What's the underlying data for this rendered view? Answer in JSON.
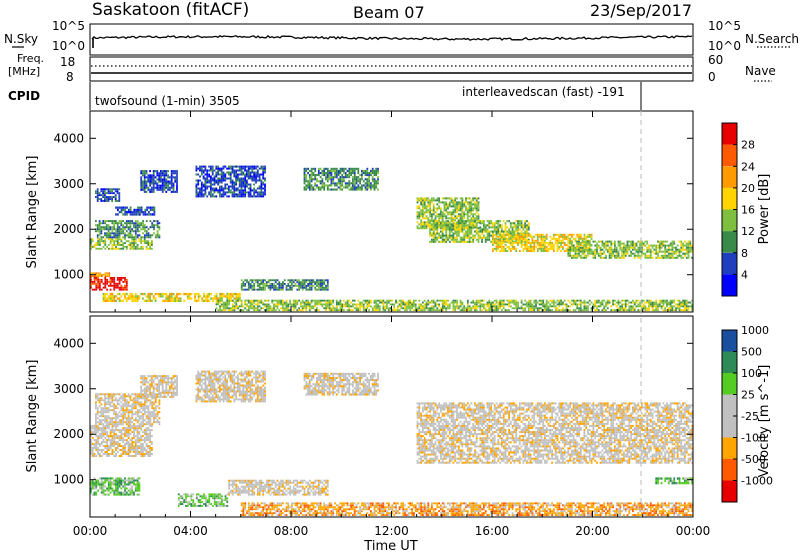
{
  "header": {
    "station": "Saskatoon (fitACF)",
    "beam": "Beam 07",
    "date": "23/Sep/2017"
  },
  "nsky_panel": {
    "left_label": "N.Sky",
    "left_ticks": [
      "10^5",
      "10^0"
    ],
    "right_label": "N.Search",
    "right_ticks": [
      "10^5",
      "10^0"
    ]
  },
  "freq_panel": {
    "left_label_1": "Freq.",
    "left_label_2": "[MHz]",
    "left_ticks": [
      "18",
      "8"
    ],
    "right_label": "Nave",
    "right_ticks": [
      "60",
      "0"
    ]
  },
  "cpid_panel": {
    "label": "CPID",
    "program_1": "twofsound (1-min) 3505",
    "program_2": "interleavedscan (fast) -191"
  },
  "colors": {
    "power_scale": [
      "#0000ff",
      "#1f3fbf",
      "#3a8a4a",
      "#7fbf3f",
      "#ffd400",
      "#ff9a00",
      "#ff5a00",
      "#e60000"
    ],
    "velocity_scale": [
      "#e60000",
      "#ff5a00",
      "#ffa500",
      "#c0c0c0",
      "#c0c0c0",
      "#55cc22",
      "#2e8b57",
      "#1a4fa0"
    ],
    "ground_scatter": "#c0c0c0"
  },
  "chart_data": [
    {
      "type": "heatmap",
      "panel": "power",
      "xlabel": "",
      "ylabel": "Slant Range [km]",
      "x_range_hours": [
        0,
        24
      ],
      "ylim": [
        180,
        4600
      ],
      "y_ticks": [
        1000,
        2000,
        3000,
        4000
      ],
      "colorbar_label": "Power [dB]",
      "colorbar_ticks": [
        "4",
        "8",
        "12",
        "16",
        "20",
        "24",
        "28"
      ],
      "regions": [
        {
          "t0": 0.0,
          "t1": 1.5,
          "r0": 650,
          "r1": 950,
          "level": 7
        },
        {
          "t0": 0.0,
          "t1": 0.8,
          "r0": 950,
          "r1": 1050,
          "level": 5
        },
        {
          "t0": 0.0,
          "t1": 2.5,
          "r0": 1550,
          "r1": 1800,
          "level": 3
        },
        {
          "t0": 0.2,
          "t1": 2.8,
          "r0": 1800,
          "r1": 2200,
          "level": 2
        },
        {
          "t0": 1.0,
          "t1": 2.6,
          "r0": 2300,
          "r1": 2500,
          "level": 1
        },
        {
          "t0": 0.2,
          "t1": 1.2,
          "r0": 2600,
          "r1": 2900,
          "level": 1
        },
        {
          "t0": 0.5,
          "t1": 6.0,
          "r0": 400,
          "r1": 600,
          "level": 4
        },
        {
          "t0": 2.0,
          "t1": 3.5,
          "r0": 2800,
          "r1": 3300,
          "level": 1
        },
        {
          "t0": 4.2,
          "t1": 7.0,
          "r0": 2700,
          "r1": 3400,
          "level": 1
        },
        {
          "t0": 6.0,
          "t1": 9.5,
          "r0": 650,
          "r1": 900,
          "level": 2
        },
        {
          "t0": 8.5,
          "t1": 11.5,
          "r0": 2850,
          "r1": 3350,
          "level": 2
        },
        {
          "t0": 13.0,
          "t1": 15.5,
          "r0": 2000,
          "r1": 2700,
          "level": 3
        },
        {
          "t0": 13.5,
          "t1": 17.5,
          "r0": 1700,
          "r1": 2200,
          "level": 3
        },
        {
          "t0": 16.0,
          "t1": 20.0,
          "r0": 1500,
          "r1": 1900,
          "level": 4
        },
        {
          "t0": 19.0,
          "t1": 24.0,
          "r0": 1350,
          "r1": 1750,
          "level": 3
        },
        {
          "t0": 5.0,
          "t1": 24.0,
          "r0": 200,
          "r1": 450,
          "level": 3
        }
      ]
    },
    {
      "type": "heatmap",
      "panel": "velocity",
      "xlabel": "Time UT",
      "ylabel": "Slant Range [km]",
      "x_range_hours": [
        0,
        24
      ],
      "x_ticks": [
        "00:00",
        "04:00",
        "08:00",
        "12:00",
        "16:00",
        "20:00",
        "00:00"
      ],
      "ylim": [
        180,
        4600
      ],
      "y_ticks": [
        1000,
        2000,
        3000,
        4000
      ],
      "colorbar_label": "Velocity [m s^-1]",
      "colorbar_ticks": [
        "-1000",
        "-500",
        "-100",
        "-25",
        "25",
        "100",
        "500",
        "1000"
      ],
      "regions": [
        {
          "t0": 0.0,
          "t1": 2.5,
          "r0": 1500,
          "r1": 2200,
          "level": 3
        },
        {
          "t0": 0.2,
          "t1": 2.8,
          "r0": 2200,
          "r1": 2900,
          "level": 3
        },
        {
          "t0": 2.0,
          "t1": 3.5,
          "r0": 2800,
          "r1": 3300,
          "level": 3
        },
        {
          "t0": 4.2,
          "t1": 7.0,
          "r0": 2700,
          "r1": 3400,
          "level": 3
        },
        {
          "t0": 8.5,
          "t1": 11.5,
          "r0": 2850,
          "r1": 3350,
          "level": 3
        },
        {
          "t0": 0.0,
          "t1": 2.0,
          "r0": 650,
          "r1": 1050,
          "level": 5
        },
        {
          "t0": 3.5,
          "t1": 5.5,
          "r0": 400,
          "r1": 700,
          "level": 5
        },
        {
          "t0": 5.5,
          "t1": 9.5,
          "r0": 650,
          "r1": 1000,
          "level": 3
        },
        {
          "t0": 13.0,
          "t1": 24.0,
          "r0": 1350,
          "r1": 2700,
          "level": 3
        },
        {
          "t0": 6.0,
          "t1": 24.0,
          "r0": 200,
          "r1": 500,
          "level": 2
        },
        {
          "t0": 22.5,
          "t1": 24.0,
          "r0": 900,
          "r1": 1050,
          "level": 5
        }
      ]
    }
  ]
}
